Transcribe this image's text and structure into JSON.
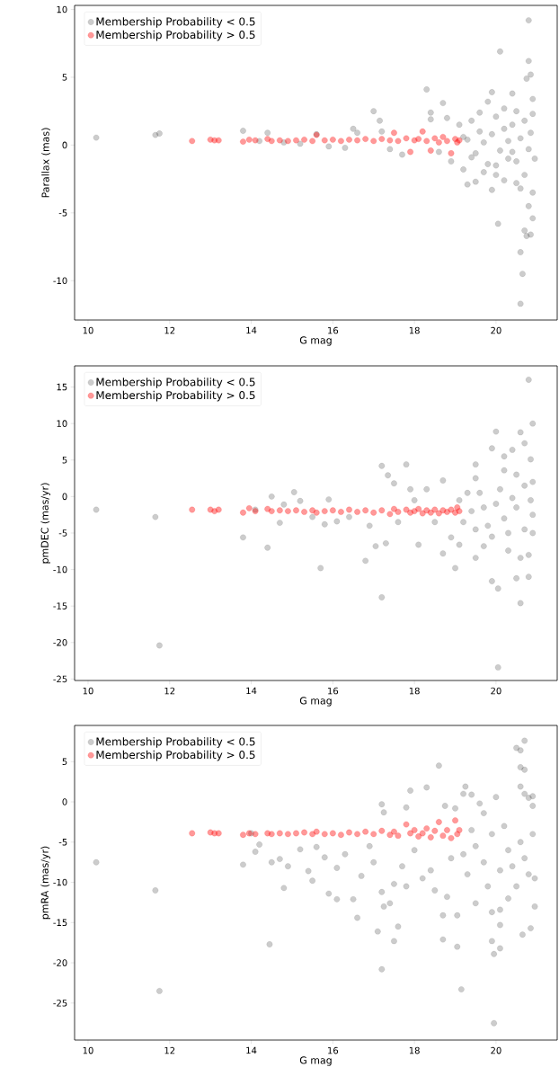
{
  "chart_data": [
    {
      "type": "scatter",
      "xlabel": "G mag",
      "ylabel": "Parallax (mas)",
      "xlim": [
        9.67,
        21.5
      ],
      "ylim": [
        -12.9,
        10.3
      ],
      "xticks": [
        10,
        12,
        14,
        16,
        18,
        20
      ],
      "yticks": [
        -10,
        -5,
        0,
        5,
        10
      ],
      "legend": "top left",
      "marker": "circle",
      "series": [
        {
          "name": "Membership Probability < 0.5",
          "color": "#000000",
          "x": [
            10.2,
            11.65,
            11.75,
            13.8,
            14.4,
            14.2,
            14.8,
            15.2,
            15.6,
            15.9,
            16.3,
            16.5,
            16.6,
            17.0,
            17.15,
            17.2,
            17.4,
            17.7,
            18.3,
            18.4,
            18.4,
            18.7,
            18.8,
            18.9,
            18.6,
            19.1,
            19.2,
            19.3,
            19.5,
            19.4,
            19.6,
            19.7,
            19.8,
            19.9,
            19.9,
            20.0,
            20.0,
            20.1,
            20.05,
            20.2,
            20.3,
            20.2,
            20.4,
            20.4,
            20.5,
            20.5,
            20.6,
            20.65,
            20.6,
            20.7,
            20.75,
            20.8,
            20.85,
            20.9,
            20.8,
            20.8,
            20.85,
            20.75,
            20.9,
            20.9,
            20.95,
            20.9,
            20.7,
            20.6,
            20.5,
            20.3,
            20.1,
            19.9,
            19.7,
            19.5,
            19.3,
            19.6,
            20.0,
            20.4,
            20.7,
            20.8,
            20.85,
            20.6,
            20.2,
            19.8,
            19.4,
            19.2
          ],
          "values": [
            0.55,
            0.75,
            0.85,
            1.05,
            0.9,
            0.3,
            0.2,
            0.1,
            0.8,
            -0.1,
            -0.2,
            1.2,
            0.9,
            2.5,
            1.8,
            1.0,
            -0.3,
            -0.7,
            4.1,
            2.4,
            1.9,
            3.1,
            2.0,
            -1.2,
            -0.5,
            1.5,
            -1.8,
            -2.9,
            -2.7,
            1.8,
            2.4,
            -2.0,
            3.2,
            3.9,
            -3.3,
            2.1,
            -2.2,
            6.9,
            -5.8,
            2.7,
            -1.0,
            1.2,
            3.8,
            -0.5,
            -2.8,
            2.5,
            -7.9,
            -9.5,
            -11.7,
            -6.3,
            -6.7,
            -4.5,
            -6.6,
            -5.4,
            9.2,
            6.2,
            5.2,
            4.9,
            3.4,
            2.3,
            -1.0,
            -3.5,
            1.8,
            0.5,
            -1.2,
            0.3,
            -0.4,
            0.8,
            0.2,
            -0.6,
            0.4,
            1.0,
            -1.5,
            1.5,
            -2.2,
            -0.3,
            0.9,
            -3.2,
            -2.6,
            -1.4,
            -0.9,
            0.6
          ]
        },
        {
          "name": "Membership Probability > 0.5",
          "color": "#ff0000",
          "x": [
            12.55,
            13.0,
            13.1,
            13.2,
            13.8,
            13.95,
            14.1,
            14.4,
            14.5,
            14.7,
            14.9,
            15.1,
            15.3,
            15.5,
            15.6,
            15.8,
            16.0,
            16.2,
            16.4,
            16.6,
            16.8,
            17.0,
            17.2,
            17.4,
            17.5,
            17.6,
            17.8,
            17.9,
            18.0,
            18.1,
            18.2,
            18.3,
            18.4,
            18.5,
            18.6,
            18.7,
            18.8,
            18.9,
            19.0,
            19.05,
            19.1
          ],
          "values": [
            0.3,
            0.4,
            0.35,
            0.35,
            0.25,
            0.4,
            0.35,
            0.45,
            0.3,
            0.35,
            0.3,
            0.35,
            0.4,
            0.3,
            0.75,
            0.35,
            0.4,
            0.3,
            0.4,
            0.35,
            0.45,
            0.3,
            0.45,
            0.35,
            0.9,
            0.3,
            0.5,
            -0.5,
            0.35,
            0.45,
            1.0,
            0.3,
            -0.4,
            0.5,
            0.2,
            0.6,
            0.3,
            -0.6,
            0.45,
            0.2,
            0.35
          ]
        }
      ]
    },
    {
      "type": "scatter",
      "xlabel": "G mag",
      "ylabel": "pmDEC (mas/yr)",
      "xlim": [
        9.67,
        21.5
      ],
      "ylim": [
        -25.2,
        17.9
      ],
      "xticks": [
        10,
        12,
        14,
        16,
        18,
        20
      ],
      "yticks": [
        -25,
        -20,
        -15,
        -10,
        -5,
        0,
        5,
        10,
        15
      ],
      "legend": "top left",
      "marker": "circle",
      "series": [
        {
          "name": "Membership Probability < 0.5",
          "color": "#000000",
          "x": [
            10.2,
            11.65,
            11.75,
            13.8,
            14.1,
            14.4,
            14.5,
            14.7,
            14.8,
            15.05,
            15.2,
            15.5,
            15.7,
            15.8,
            15.9,
            16.1,
            16.4,
            16.8,
            16.9,
            17.05,
            17.2,
            17.2,
            17.35,
            17.3,
            17.5,
            17.8,
            17.9,
            18.1,
            18.3,
            18.7,
            18.7,
            18.9,
            19.0,
            19.1,
            19.5,
            19.5,
            19.5,
            19.7,
            19.9,
            19.9,
            20.0,
            20.05,
            20.05,
            20.2,
            20.2,
            20.3,
            20.4,
            20.5,
            20.6,
            20.6,
            20.7,
            20.8,
            20.8,
            20.9,
            20.85,
            20.9,
            20.8,
            20.6,
            20.4,
            20.2,
            20.0,
            19.8,
            19.6,
            19.4,
            19.2,
            19.3,
            19.7,
            20.1,
            20.5,
            20.7,
            20.9,
            20.85,
            20.7,
            20.3,
            19.9,
            19.5,
            19.1,
            20.5,
            20.9,
            18.5,
            18.0,
            17.6
          ],
          "values": [
            -1.8,
            -2.8,
            -20.4,
            -5.6,
            -1.8,
            -7.0,
            0.0,
            -3.6,
            -1.1,
            0.6,
            -0.6,
            -2.8,
            -9.8,
            -3.8,
            -0.4,
            -3.4,
            -2.8,
            -8.8,
            -4.0,
            -6.8,
            -13.8,
            4.2,
            2.9,
            -6.4,
            1.8,
            4.4,
            1.0,
            -6.6,
            1.0,
            2.2,
            -7.8,
            -5.6,
            -9.8,
            -6.6,
            4.4,
            2.5,
            -8.4,
            -6.8,
            -11.6,
            6.6,
            8.9,
            -12.6,
            -23.4,
            3.6,
            5.5,
            -7.4,
            6.4,
            -11.2,
            8.8,
            -14.6,
            7.3,
            16.0,
            -11.0,
            10.0,
            5.1,
            -5.0,
            -8.0,
            -8.4,
            -0.2,
            -3.0,
            -1.0,
            -4.0,
            0.5,
            -2.0,
            -3.5,
            0.5,
            -1.5,
            1.0,
            -1.5,
            1.5,
            -2.5,
            -0.5,
            -4.5,
            -5.0,
            -5.5,
            -4.5,
            -0.5,
            3.0,
            2.0,
            -3.5,
            -0.5,
            -3.5
          ]
        },
        {
          "name": "Membership Probability > 0.5",
          "color": "#ff0000",
          "x": [
            12.55,
            13.0,
            13.1,
            13.2,
            13.8,
            13.95,
            14.1,
            14.4,
            14.5,
            14.7,
            14.9,
            15.1,
            15.3,
            15.5,
            15.6,
            15.8,
            16.0,
            16.2,
            16.4,
            16.6,
            16.8,
            17.0,
            17.2,
            17.4,
            17.5,
            17.6,
            17.8,
            17.9,
            18.0,
            18.1,
            18.2,
            18.3,
            18.4,
            18.5,
            18.6,
            18.7,
            18.8,
            18.9,
            19.0,
            19.05,
            19.1
          ],
          "values": [
            -1.8,
            -1.8,
            -2.0,
            -1.8,
            -2.2,
            -1.6,
            -2.0,
            -1.7,
            -2.0,
            -1.9,
            -2.0,
            -1.9,
            -2.1,
            -1.9,
            -2.2,
            -2.0,
            -1.9,
            -2.1,
            -1.8,
            -2.1,
            -1.9,
            -2.2,
            -1.9,
            -2.4,
            -1.7,
            -2.1,
            -1.8,
            -2.2,
            -2.0,
            -1.7,
            -2.3,
            -1.9,
            -2.2,
            -1.8,
            -2.3,
            -1.9,
            -2.1,
            -1.8,
            -2.2,
            -1.5,
            -2.0
          ]
        }
      ]
    },
    {
      "type": "scatter",
      "xlabel": "G mag",
      "ylabel": "pmRA (mas/yr)",
      "xlim": [
        9.67,
        21.5
      ],
      "ylim": [
        -29.6,
        9.5
      ],
      "xticks": [
        10,
        12,
        14,
        16,
        18,
        20
      ],
      "yticks": [
        -25,
        -20,
        -15,
        -10,
        -5,
        0,
        5
      ],
      "legend": "top left",
      "marker": "circle",
      "series": [
        {
          "name": "Membership Probability < 0.5",
          "color": "#000000",
          "x": [
            10.2,
            11.65,
            11.75,
            13.8,
            14.0,
            14.2,
            14.1,
            14.45,
            14.5,
            14.7,
            14.8,
            14.9,
            15.2,
            15.4,
            15.5,
            15.6,
            15.8,
            15.9,
            16.1,
            16.1,
            16.5,
            16.6,
            16.7,
            16.9,
            17.1,
            17.2,
            17.2,
            17.25,
            17.2,
            17.25,
            17.4,
            17.5,
            17.5,
            17.6,
            17.8,
            17.8,
            17.9,
            18.3,
            18.5,
            18.6,
            18.7,
            18.7,
            18.75,
            18.8,
            19.0,
            19.05,
            19.05,
            19.15,
            19.2,
            19.25,
            19.4,
            19.5,
            19.6,
            19.7,
            19.9,
            19.9,
            19.95,
            19.95,
            20.0,
            20.1,
            20.1,
            20.1,
            20.3,
            20.5,
            20.6,
            20.6,
            20.7,
            20.7,
            20.6,
            20.7,
            20.8,
            20.9,
            20.9,
            20.65,
            20.85,
            20.95,
            20.95,
            20.9,
            20.7,
            20.5,
            20.3,
            20.1,
            19.9,
            19.7,
            19.5,
            19.3,
            19.2,
            19.4,
            19.8,
            20.2,
            20.4,
            20.6,
            20.8,
            18.4,
            18.0,
            17.7,
            18.9,
            18.2,
            16.3,
            17.0
          ],
          "values": [
            -7.5,
            -11.0,
            -23.5,
            -7.8,
            -3.9,
            -5.3,
            -6.2,
            -17.7,
            -7.5,
            -7.1,
            -10.7,
            -8.0,
            -5.9,
            -8.6,
            -9.8,
            -5.6,
            -6.9,
            -11.4,
            -8.2,
            -12.1,
            -12.1,
            -14.4,
            -9.2,
            -5.5,
            -16.1,
            -20.8,
            -11.2,
            -13.0,
            -0.3,
            -1.3,
            -12.6,
            -17.3,
            -10.2,
            -15.5,
            -10.5,
            -0.7,
            1.4,
            1.8,
            -11.0,
            4.5,
            -14.1,
            -17.1,
            -0.5,
            -11.8,
            -0.8,
            -14.1,
            -18.0,
            -23.3,
            1.0,
            1.9,
            0.9,
            -12.6,
            -0.2,
            -1.4,
            -17.3,
            -13.7,
            -18.9,
            -27.5,
            0.6,
            -18.2,
            -15.3,
            -13.4,
            -12.0,
            6.7,
            6.4,
            4.3,
            7.6,
            4.0,
            1.9,
            1.0,
            0.5,
            0.7,
            -0.5,
            -16.5,
            -15.7,
            -13.0,
            -9.5,
            -4.0,
            -7.0,
            -10.5,
            -6.0,
            -8.5,
            -4.0,
            -7.5,
            -5.5,
            -9.0,
            -6.5,
            -3.5,
            -10.5,
            -3.0,
            -8.0,
            -5.0,
            -9.0,
            -8.5,
            -6.0,
            -8.0,
            -7.0,
            -9.5,
            -6.5,
            -7.5
          ]
        },
        {
          "name": "Membership Probability > 0.5",
          "color": "#ff0000",
          "x": [
            12.55,
            13.0,
            13.1,
            13.2,
            13.8,
            13.95,
            14.1,
            14.4,
            14.5,
            14.7,
            14.9,
            15.1,
            15.3,
            15.5,
            15.6,
            15.8,
            16.0,
            16.2,
            16.4,
            16.6,
            16.8,
            17.0,
            17.2,
            17.4,
            17.5,
            17.6,
            17.8,
            17.9,
            18.0,
            18.1,
            18.2,
            18.3,
            18.4,
            18.5,
            18.6,
            18.7,
            18.8,
            18.9,
            19.0,
            19.05,
            19.1
          ],
          "values": [
            -3.9,
            -3.8,
            -3.9,
            -3.9,
            -4.1,
            -3.9,
            -4.0,
            -3.9,
            -4.0,
            -3.9,
            -4.0,
            -3.9,
            -3.8,
            -4.0,
            -3.7,
            -4.0,
            -3.9,
            -4.1,
            -3.8,
            -4.0,
            -3.7,
            -4.0,
            -3.6,
            -4.1,
            -3.7,
            -4.2,
            -2.8,
            -3.9,
            -3.5,
            -4.3,
            -3.9,
            -3.3,
            -4.4,
            -3.6,
            -2.5,
            -4.2,
            -3.5,
            -4.5,
            -2.3,
            -4.0,
            -3.5
          ]
        }
      ]
    }
  ]
}
